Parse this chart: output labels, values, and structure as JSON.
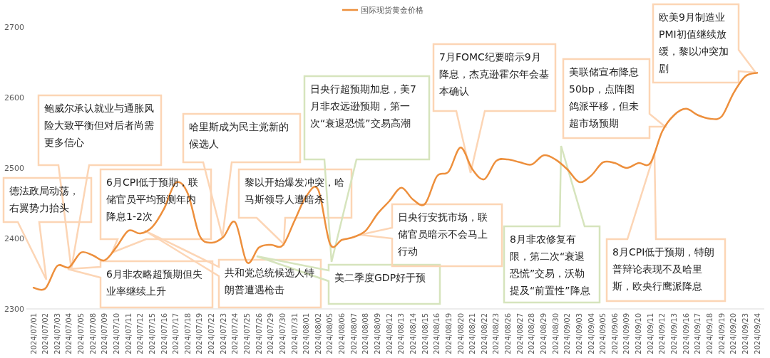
{
  "chart_data": {
    "type": "line",
    "legend": "top",
    "categories": [
      "2024/07/01",
      "2024/07/02",
      "2024/07/03",
      "2024/07/04",
      "2024/07/05",
      "2024/07/08",
      "2024/07/09",
      "2024/07/10",
      "2024/07/11",
      "2024/07/12",
      "2024/07/15",
      "2024/07/16",
      "2024/07/17",
      "2024/07/18",
      "2024/07/19",
      "2024/07/22",
      "2024/07/23",
      "2024/07/24",
      "2024/07/25",
      "2024/07/26",
      "2024/07/29",
      "2024/07/30",
      "2024/07/31",
      "2024/08/01",
      "2024/08/02",
      "2024/08/05",
      "2024/08/06",
      "2024/08/07",
      "2024/08/08",
      "2024/08/09",
      "2024/08/12",
      "2024/08/13",
      "2024/08/14",
      "2024/08/15",
      "2024/08/16",
      "2024/08/19",
      "2024/08/20",
      "2024/08/21",
      "2024/08/22",
      "2024/08/23",
      "2024/08/26",
      "2024/08/27",
      "2024/08/28",
      "2024/08/29",
      "2024/08/30",
      "2024/09/02",
      "2024/09/03",
      "2024/09/04",
      "2024/09/05",
      "2024/09/06",
      "2024/09/09",
      "2024/09/10",
      "2024/09/11",
      "2024/09/12",
      "2024/09/13",
      "2024/09/16",
      "2024/09/17",
      "2024/09/18",
      "2024/09/19",
      "2024/09/20",
      "2024/09/23",
      "2024/09/24"
    ],
    "series": [
      {
        "name": "国际现货黄金价格",
        "color": "#ed8f3c",
        "values": [
          2330,
          2329,
          2361,
          2359,
          2380,
          2376,
          2369,
          2388,
          2411,
          2407,
          2416,
          2442,
          2479,
          2464,
          2404,
          2394,
          2402,
          2423,
          2366,
          2387,
          2391,
          2390,
          2425,
          2460,
          2469,
          2392,
          2398,
          2402,
          2411,
          2435,
          2453,
          2472,
          2455,
          2449,
          2488,
          2495,
          2529,
          2498,
          2484,
          2510,
          2512,
          2508,
          2505,
          2518,
          2512,
          2498,
          2480,
          2489,
          2508,
          2507,
          2500,
          2507,
          2507,
          2552,
          2575,
          2584,
          2575,
          2570,
          2573,
          2606,
          2630,
          2635
        ]
      }
    ],
    "ylim": [
      2300,
      2700
    ],
    "yticks": [
      2300,
      2400,
      2500,
      2600,
      2700
    ],
    "grid": false,
    "marker": "none",
    "line_style": "solid",
    "annotations": [
      "德法政局动荡，右翼势力抬头",
      "鲍威尔承认就业与通胀风险大致平衡但对后者尚需更多信心",
      "6月CPI低于预期，联储官员平均预测年内降息1-2次",
      "6月非农略超预期但失业率继续上升",
      "哈里斯成为民主党新的候选人",
      "共和党总统候选人特朗普遭遇枪击",
      "黎以开始爆发冲突，哈马斯领导人遭暗杀",
      "日央行超预期加息，美7月非农远逊预期，第一次“衰退恐慌”交易高潮",
      "美二季度GDP好于预",
      "日央行安抚市场，联储官员暗示不会马上行动",
      "7月FOMC纪要暗示9月降息，杰克逊霍尔年会基本确认",
      "8月非农修复有限，第二次“衰退恐慌”交易，沃勒提及“前置性”降息",
      "美联储宣布降息50bp，点阵图鸽派平移，但未超市场预期",
      "8月CPI低于预期，特朗普辩论表现不及哈里斯，欧央行鹰派降息",
      "欧美9月制造业PMI初值继续放缓，黎以冲突加剧"
    ]
  }
}
